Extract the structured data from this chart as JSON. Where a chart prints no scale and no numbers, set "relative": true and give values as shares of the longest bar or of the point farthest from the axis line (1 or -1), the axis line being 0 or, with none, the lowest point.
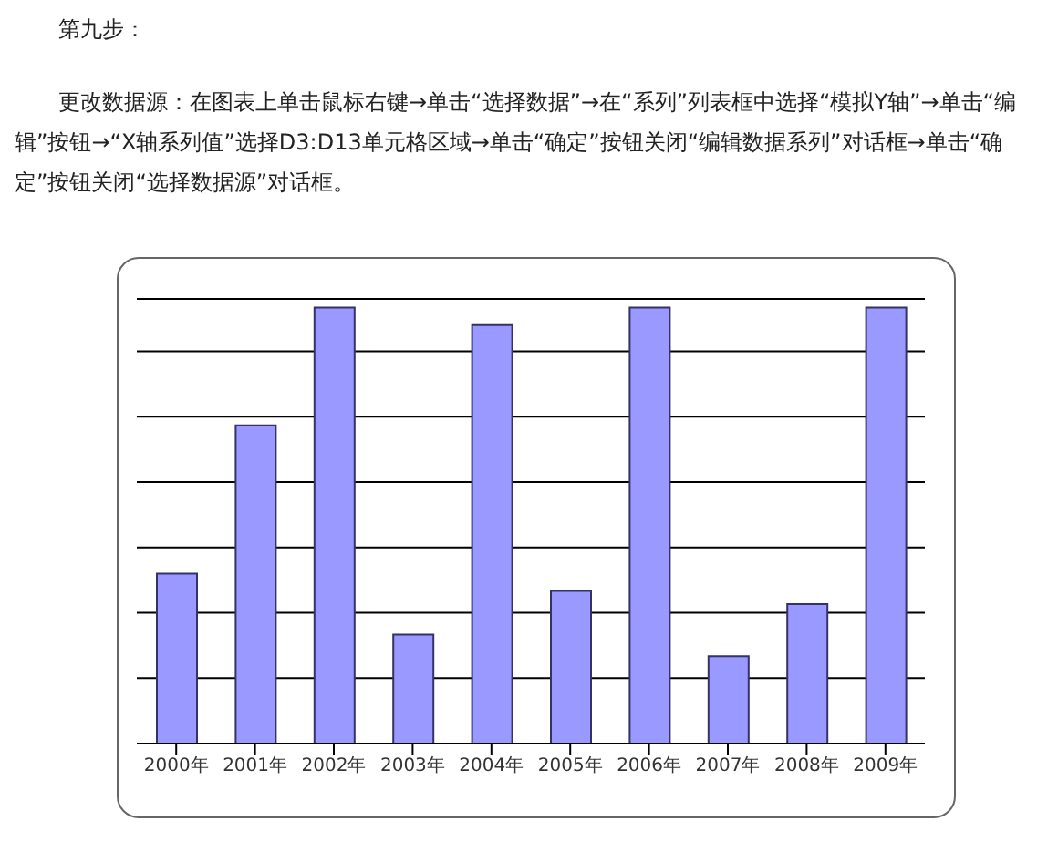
{
  "chart_data": {
    "type": "bar",
    "title": "第九步：",
    "subtitle": "更改数据源：在图表上单击鼠标右键→单击“选择数据”→在“系列”列表框中选择“模拟Y轴”→单击“编辑”按钮→“X轴系列值”选择D3:D13单元格区域→单击“确定”按钮关闭“编辑数据系列”对话框→单击“确定”按钮关闭“选择数据源”对话框。",
    "categories": [
      "2000年",
      "2001年",
      "2002年",
      "2003年",
      "2004年",
      "2005年",
      "2006年",
      "2007年",
      "2008年",
      "2009年"
    ],
    "values": [
      0.39,
      0.73,
      1,
      0.25,
      0.96,
      0.35,
      1,
      0.2,
      0.32,
      1
    ],
    "color": "#9999ff",
    "relative": true,
    "grid": "y"
  }
}
